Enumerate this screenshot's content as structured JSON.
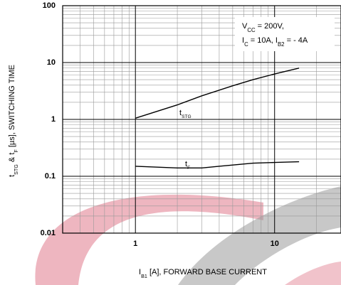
{
  "chart_data": {
    "type": "line",
    "xlabel": [
      "I",
      "B1",
      " [A], FORWARD BASE CURRENT"
    ],
    "ylabel": [
      "t",
      "STG",
      " & t",
      "F",
      " [µs], SWITCHING TIME"
    ],
    "annotation": [
      [
        "V",
        "CC",
        " = 200V,"
      ],
      [
        "I",
        "C",
        " = 10A, I",
        "B2",
        " = - 4A"
      ]
    ],
    "log_x": true,
    "log_y": true,
    "grid": true,
    "xlim": [
      0.3,
      30
    ],
    "ylim": [
      0.01,
      100
    ],
    "xticks": [
      1,
      10
    ],
    "yticks": [
      0.01,
      0.1,
      1,
      10,
      100
    ],
    "minor_xticks": [
      0.4,
      0.5,
      0.6,
      0.7,
      0.8,
      0.9,
      2,
      3,
      4,
      5,
      6,
      7,
      8,
      9,
      20
    ],
    "minor_yticks": [
      0.02,
      0.03,
      0.04,
      0.05,
      0.06,
      0.07,
      0.08,
      0.09,
      0.2,
      0.3,
      0.4,
      0.5,
      0.6,
      0.7,
      0.8,
      0.9,
      2,
      3,
      4,
      5,
      6,
      7,
      8,
      9,
      20,
      30,
      40,
      50,
      60,
      70,
      80,
      90
    ],
    "series": [
      {
        "label": [
          "t",
          "STG"
        ],
        "color": "#000000",
        "x": [
          1,
          2,
          3,
          5,
          7,
          10,
          15
        ],
        "values": [
          1.05,
          1.8,
          2.6,
          3.9,
          5,
          6.3,
          8
        ]
      },
      {
        "label": [
          "t",
          "F"
        ],
        "color": "#000000",
        "x": [
          1,
          2,
          3,
          4,
          7,
          10,
          15
        ],
        "values": [
          0.15,
          0.14,
          0.14,
          0.15,
          0.17,
          0.175,
          0.18
        ]
      }
    ]
  }
}
